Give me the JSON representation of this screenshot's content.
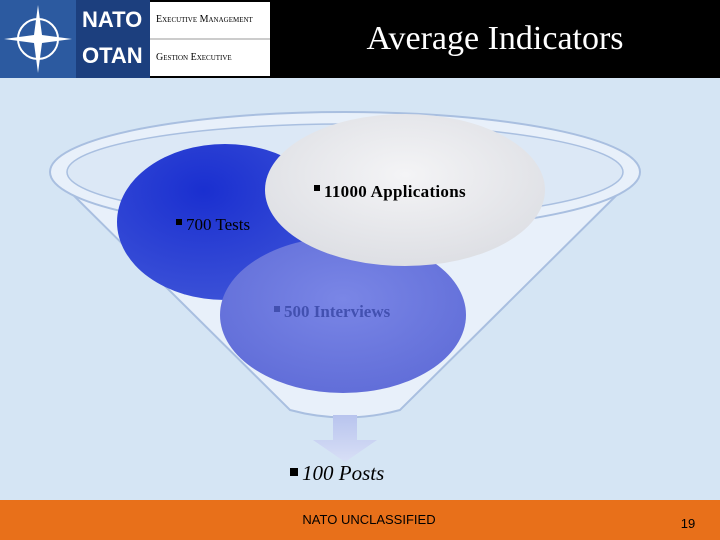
{
  "header": {
    "logo_top": "NATO",
    "logo_bottom": "OTAN",
    "unit_en": "Executive Management",
    "unit_fr": "Gestion Executive",
    "title": "Average Indicators"
  },
  "funnel": {
    "items": [
      {
        "label": "11000 Applications"
      },
      {
        "label": "700 Tests"
      },
      {
        "label": "500 Interviews"
      },
      {
        "label": "100 Posts"
      }
    ]
  },
  "footer": {
    "classification": "NATO UNCLASSIFIED",
    "page": "19"
  }
}
